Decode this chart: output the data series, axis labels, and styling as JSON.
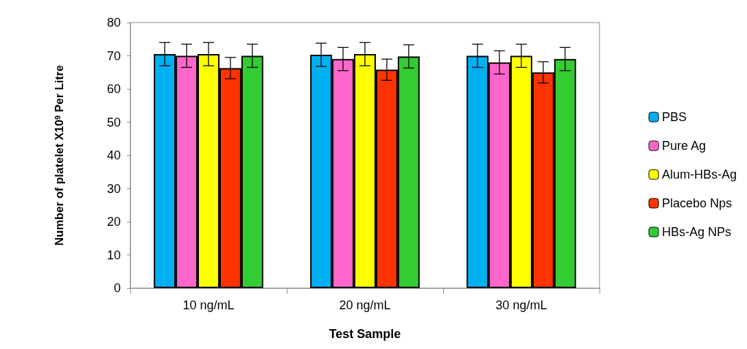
{
  "chart_data": {
    "type": "bar",
    "xlabel": "Test Sample",
    "ylabel": "Number of platelet X10$^{9}$ Per Litre",
    "categories": [
      "10 ng/mL",
      "20 ng/mL",
      "30 ng/mL"
    ],
    "series": [
      {
        "name": "PBS",
        "color": "#00b0f0",
        "values": [
          70.5,
          70.3,
          70
        ],
        "errors": [
          3.5,
          3.5,
          3.5
        ]
      },
      {
        "name": "Pure Ag",
        "color": "#ff66cc",
        "values": [
          70,
          69,
          68
        ],
        "errors": [
          3.5,
          3.5,
          3.5
        ]
      },
      {
        "name": "Alum-HBs-Ag",
        "color": "#ffff00",
        "values": [
          70.5,
          70.5,
          70
        ],
        "errors": [
          3.5,
          3.5,
          3.5
        ]
      },
      {
        "name": "Placebo Nps",
        "color": "#ff3300",
        "values": [
          66.3,
          65.8,
          65
        ],
        "errors": [
          3.2,
          3.2,
          3.2
        ]
      },
      {
        "name": "HBs-Ag NPs",
        "color": "#33cc33",
        "values": [
          70,
          69.8,
          69
        ],
        "errors": [
          3.5,
          3.5,
          3.5
        ]
      }
    ],
    "ylim": [
      0,
      80
    ],
    "yticks": [
      0,
      10,
      20,
      30,
      40,
      50,
      60,
      70,
      80
    ],
    "grid": false,
    "legend": "right"
  }
}
